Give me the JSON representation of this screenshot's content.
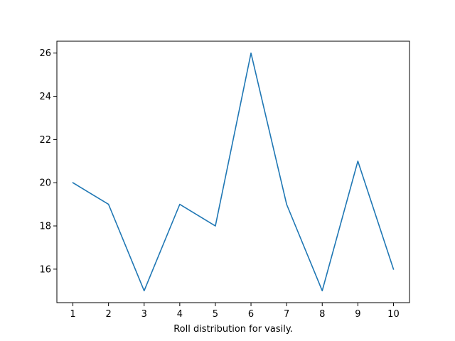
{
  "chart_data": {
    "type": "line",
    "title": "",
    "xlabel": "Roll distribution for vasily.",
    "ylabel": "",
    "x": [
      1,
      2,
      3,
      4,
      5,
      6,
      7,
      8,
      9,
      10
    ],
    "series": [
      {
        "values": [
          20,
          19,
          15,
          19,
          18,
          26,
          19,
          15,
          21,
          16
        ],
        "color": "#1f77b4"
      }
    ],
    "xticks": [
      "1",
      "2",
      "3",
      "4",
      "5",
      "6",
      "7",
      "8",
      "9",
      "10"
    ],
    "yticks": [
      "16",
      "18",
      "20",
      "22",
      "24",
      "26"
    ],
    "xlim": [
      0.55,
      10.45
    ],
    "ylim": [
      14.45,
      26.55
    ],
    "grid": false,
    "legend": "none"
  }
}
